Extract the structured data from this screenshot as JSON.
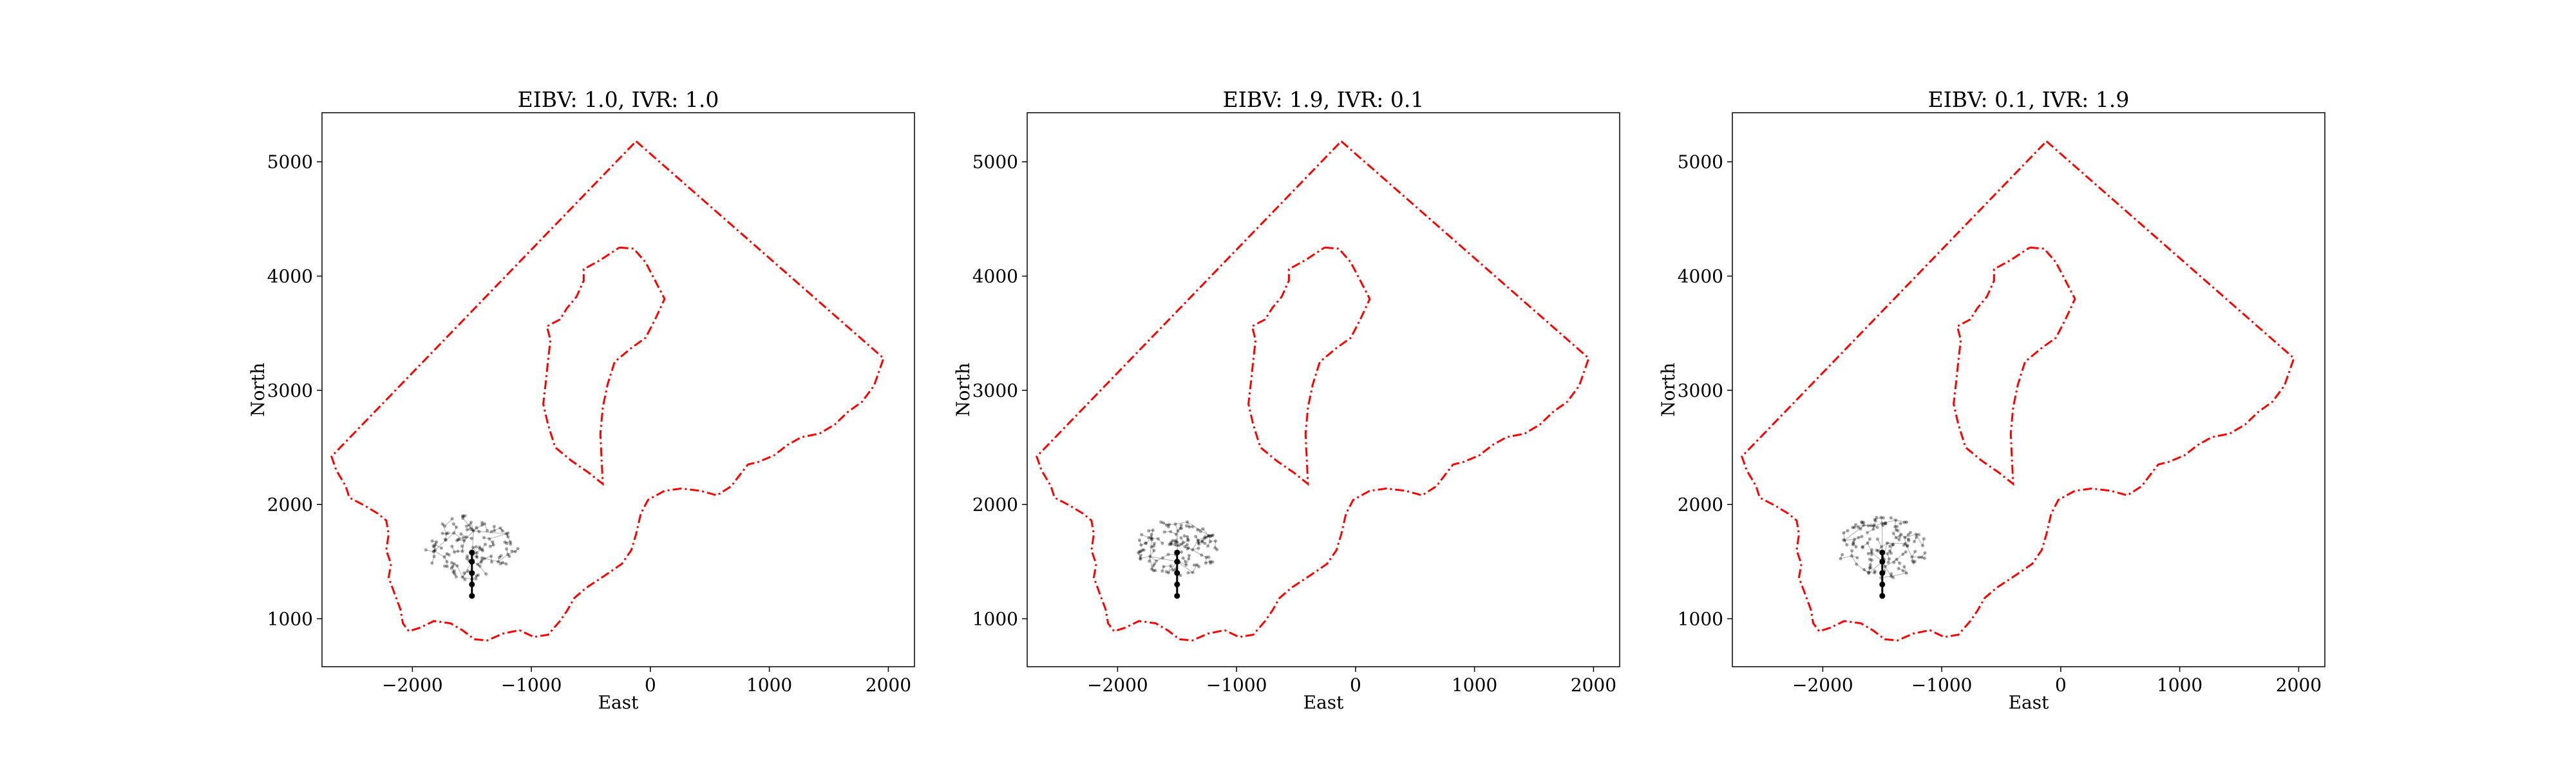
{
  "figure": {
    "background": "#ffffff"
  },
  "style": {
    "boundary_color": "#ff0000",
    "tree_edge_color": "#000000",
    "tree_node_color": "#000000",
    "trajectory_color": "#000000"
  },
  "chart_data": [
    {
      "type": "scatter",
      "title": "EIBV: 1.0, IVR: 1.0",
      "xlabel": "East",
      "ylabel": "North",
      "xlim": [
        -2760,
        2220
      ],
      "ylim": [
        580,
        5430
      ],
      "xticks": [
        -2000,
        -1000,
        0,
        1000,
        2000
      ],
      "xtick_labels": [
        "−2000",
        "−1000",
        "0",
        "1000",
        "2000"
      ],
      "yticks": [
        1000,
        2000,
        3000,
        4000,
        5000
      ],
      "ytick_labels": [
        "1000",
        "2000",
        "3000",
        "4000",
        "5000"
      ],
      "grid": false,
      "tree_root": [
        -1500,
        1500
      ],
      "tree_spread": 380,
      "tree_seed": 11
    },
    {
      "type": "scatter",
      "title": "EIBV: 1.9, IVR: 0.1",
      "xlabel": "East",
      "ylabel": "North",
      "xlim": [
        -2760,
        2220
      ],
      "ylim": [
        580,
        5430
      ],
      "xticks": [
        -2000,
        -1000,
        0,
        1000,
        2000
      ],
      "xtick_labels": [
        "−2000",
        "−1000",
        "0",
        "1000",
        "2000"
      ],
      "yticks": [
        1000,
        2000,
        3000,
        4000,
        5000
      ],
      "ytick_labels": [
        "1000",
        "2000",
        "3000",
        "4000",
        "5000"
      ],
      "grid": false,
      "tree_root": [
        -1500,
        1500
      ],
      "tree_spread": 330,
      "tree_seed": 23
    },
    {
      "type": "scatter",
      "title": "EIBV: 0.1, IVR: 1.9",
      "xlabel": "East",
      "ylabel": "North",
      "xlim": [
        -2760,
        2220
      ],
      "ylim": [
        580,
        5430
      ],
      "xticks": [
        -2000,
        -1000,
        0,
        1000,
        2000
      ],
      "xtick_labels": [
        "−2000",
        "−1000",
        "0",
        "1000",
        "2000"
      ],
      "yticks": [
        1000,
        2000,
        3000,
        4000,
        5000
      ],
      "ytick_labels": [
        "1000",
        "2000",
        "3000",
        "4000",
        "5000"
      ],
      "grid": false,
      "tree_root": [
        -1500,
        1500
      ],
      "tree_spread": 360,
      "tree_seed": 37
    }
  ],
  "boundary": {
    "outer": [
      [
        -120,
        5180
      ],
      [
        1960,
        3280
      ],
      [
        1880,
        3040
      ],
      [
        1780,
        2900
      ],
      [
        1660,
        2810
      ],
      [
        1550,
        2700
      ],
      [
        1420,
        2620
      ],
      [
        1270,
        2590
      ],
      [
        1150,
        2520
      ],
      [
        1040,
        2430
      ],
      [
        900,
        2370
      ],
      [
        820,
        2350
      ],
      [
        760,
        2270
      ],
      [
        680,
        2160
      ],
      [
        560,
        2080
      ],
      [
        420,
        2120
      ],
      [
        260,
        2140
      ],
      [
        120,
        2120
      ],
      [
        -20,
        2040
      ],
      [
        -80,
        1920
      ],
      [
        -120,
        1740
      ],
      [
        -160,
        1600
      ],
      [
        -240,
        1480
      ],
      [
        -380,
        1380
      ],
      [
        -540,
        1270
      ],
      [
        -640,
        1180
      ],
      [
        -700,
        1070
      ],
      [
        -760,
        980
      ],
      [
        -860,
        860
      ],
      [
        -980,
        840
      ],
      [
        -1100,
        900
      ],
      [
        -1240,
        870
      ],
      [
        -1370,
        810
      ],
      [
        -1480,
        820
      ],
      [
        -1580,
        900
      ],
      [
        -1680,
        960
      ],
      [
        -1820,
        980
      ],
      [
        -1940,
        920
      ],
      [
        -2030,
        890
      ],
      [
        -2080,
        960
      ],
      [
        -2100,
        1080
      ],
      [
        -2150,
        1220
      ],
      [
        -2200,
        1360
      ],
      [
        -2180,
        1480
      ],
      [
        -2220,
        1600
      ],
      [
        -2200,
        1740
      ],
      [
        -2220,
        1860
      ],
      [
        -2290,
        1920
      ],
      [
        -2400,
        1990
      ],
      [
        -2530,
        2060
      ],
      [
        -2560,
        2160
      ],
      [
        -2640,
        2300
      ],
      [
        -2680,
        2420
      ],
      [
        -120,
        5180
      ]
    ],
    "inner": [
      [
        -260,
        4250
      ],
      [
        -140,
        4240
      ],
      [
        -40,
        4120
      ],
      [
        40,
        3960
      ],
      [
        120,
        3800
      ],
      [
        40,
        3620
      ],
      [
        -40,
        3460
      ],
      [
        -160,
        3370
      ],
      [
        -300,
        3250
      ],
      [
        -360,
        3050
      ],
      [
        -400,
        2850
      ],
      [
        -420,
        2620
      ],
      [
        -410,
        2400
      ],
      [
        -400,
        2180
      ],
      [
        -520,
        2280
      ],
      [
        -660,
        2380
      ],
      [
        -800,
        2500
      ],
      [
        -860,
        2700
      ],
      [
        -900,
        2880
      ],
      [
        -880,
        3060
      ],
      [
        -860,
        3260
      ],
      [
        -840,
        3440
      ],
      [
        -870,
        3560
      ],
      [
        -760,
        3620
      ],
      [
        -700,
        3720
      ],
      [
        -620,
        3820
      ],
      [
        -560,
        3960
      ],
      [
        -560,
        4060
      ],
      [
        -420,
        4140
      ],
      [
        -260,
        4250
      ]
    ]
  }
}
